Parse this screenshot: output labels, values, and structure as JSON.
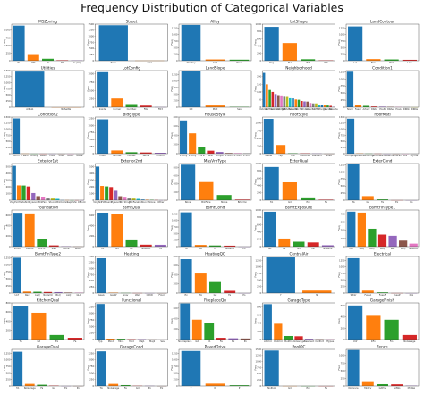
{
  "figure_title": "Frequency Distribution of Categorical Variables",
  "palette": [
    "#1f77b4",
    "#ff7f0e",
    "#2ca02c",
    "#d62728",
    "#9467bd",
    "#8c564b",
    "#e377c2",
    "#7f7f7f",
    "#bcbd22",
    "#17becf"
  ],
  "chart_data": [
    {
      "type": "bar",
      "title": "MSZoning",
      "ylabel": "Freq",
      "categories": [
        "RL",
        "RM",
        "FV",
        "RH",
        "C (all)"
      ],
      "values": [
        1151,
        218,
        65,
        16,
        10
      ],
      "ylim": [
        0,
        1200
      ]
    },
    {
      "type": "bar",
      "title": "Street",
      "ylabel": "Freq",
      "categories": [
        "Pave",
        "Grvl"
      ],
      "values": [
        1454,
        6
      ],
      "ylim": [
        0,
        1500
      ]
    },
    {
      "type": "bar",
      "title": "Alley",
      "ylabel": "Freq",
      "categories": [
        "NoAlley",
        "Grvl",
        "Pave"
      ],
      "values": [
        1369,
        50,
        41
      ],
      "ylim": [
        0,
        1400
      ]
    },
    {
      "type": "bar",
      "title": "LotShape",
      "ylabel": "Freq",
      "categories": [
        "Reg",
        "IR1",
        "IR2",
        "IR3"
      ],
      "values": [
        925,
        484,
        41,
        10
      ],
      "ylim": [
        0,
        1000
      ]
    },
    {
      "type": "bar",
      "title": "LandContour",
      "ylabel": "Freq",
      "categories": [
        "Lvl",
        "Bnk",
        "HLS",
        "Low"
      ],
      "values": [
        1311,
        63,
        50,
        36
      ],
      "ylim": [
        0,
        1400
      ]
    },
    {
      "type": "bar",
      "title": "Utilities",
      "ylabel": "Freq",
      "categories": [
        "AllPub",
        "NoSeWa"
      ],
      "values": [
        1459,
        1
      ],
      "ylim": [
        0,
        1500
      ]
    },
    {
      "type": "bar",
      "title": "LotConfig",
      "ylabel": "Freq",
      "categories": [
        "Inside",
        "Corner",
        "CulDSac",
        "FR2",
        "FR3"
      ],
      "values": [
        1052,
        263,
        94,
        47,
        4
      ],
      "ylim": [
        0,
        1100
      ]
    },
    {
      "type": "bar",
      "title": "LandSlope",
      "ylabel": "Freq",
      "categories": [
        "Gtl",
        "Mod",
        "Sev"
      ],
      "values": [
        1382,
        65,
        13
      ],
      "ylim": [
        0,
        1400
      ]
    },
    {
      "type": "bar",
      "title": "Neighborhood",
      "ylabel": "Freq",
      "categories": [
        "NAmes",
        "CollgCr",
        "OldTown",
        "Edwards",
        "Somerst",
        "Gilbert",
        "NridgHt",
        "Sawyer",
        "NWAmes",
        "SawyerW",
        "BrkSide",
        "Crawfor",
        "Mitchel",
        "NoRidge",
        "Timber",
        "IDOTRR",
        "ClearCr",
        "StoneBr",
        "SWISU",
        "MeadowV",
        "Blmngtn",
        "BrDale",
        "Veenker",
        "NPkVill",
        "Blueste"
      ],
      "values": [
        225,
        150,
        113,
        100,
        86,
        79,
        77,
        74,
        73,
        59,
        58,
        51,
        49,
        41,
        38,
        37,
        28,
        25,
        25,
        17,
        17,
        16,
        11,
        9,
        2
      ],
      "ylim": [
        0,
        240
      ]
    },
    {
      "type": "bar",
      "title": "Condition1",
      "ylabel": "Freq",
      "categories": [
        "Norm",
        "Feedr",
        "Artery",
        "RRAn",
        "PosN",
        "RRAe",
        "PosA",
        "RRNn",
        "RRNe"
      ],
      "values": [
        1260,
        81,
        48,
        26,
        19,
        11,
        8,
        5,
        2
      ],
      "ylim": [
        0,
        1300
      ]
    },
    {
      "type": "bar",
      "title": "Condition2",
      "ylabel": "Freq",
      "categories": [
        "Norm",
        "Feedr",
        "Artery",
        "RRNn",
        "PosN",
        "PosA",
        "RRAn",
        "RRAe"
      ],
      "values": [
        1445,
        6,
        2,
        2,
        2,
        1,
        1,
        1
      ],
      "ylim": [
        0,
        1500
      ]
    },
    {
      "type": "bar",
      "title": "BldgType",
      "ylabel": "Freq",
      "categories": [
        "1Fam",
        "TwnhsE",
        "Duplex",
        "Twnhs",
        "2fmCon"
      ],
      "values": [
        1220,
        114,
        52,
        43,
        31
      ],
      "ylim": [
        0,
        1300
      ]
    },
    {
      "type": "bar",
      "title": "HouseStyle",
      "ylabel": "Freq",
      "categories": [
        "1Story",
        "2Story",
        "1.5Fin",
        "SLvl",
        "SFoyer",
        "1.5Unf",
        "2.5Unf",
        "2.5Fin"
      ],
      "values": [
        726,
        445,
        154,
        65,
        37,
        14,
        11,
        8
      ],
      "ylim": [
        0,
        800
      ]
    },
    {
      "type": "bar",
      "title": "RoofStyle",
      "ylabel": "Freq",
      "categories": [
        "Gable",
        "Hip",
        "Flat",
        "Gambrel",
        "Mansard",
        "Shed"
      ],
      "values": [
        1141,
        286,
        13,
        11,
        7,
        2
      ],
      "ylim": [
        0,
        1200
      ]
    },
    {
      "type": "bar",
      "title": "RoofMatl",
      "ylabel": "Freq",
      "categories": [
        "CompShg",
        "Tar&Grv",
        "WdShngl",
        "WdShake",
        "Metal",
        "Membran",
        "Roll",
        "ClyTile"
      ],
      "values": [
        1434,
        11,
        6,
        5,
        1,
        1,
        1,
        1
      ],
      "ylim": [
        0,
        1500
      ]
    },
    {
      "type": "bar",
      "title": "Exterior1st",
      "ylabel": "Freq",
      "categories": [
        "VinylSd",
        "HdBoard",
        "MetalSd",
        "Wd Sdng",
        "Plywood",
        "CemntBd",
        "BrkFace",
        "WdShing",
        "Stucco",
        "AsbShng",
        "BrkComm",
        "Stone",
        "AsphShn",
        "ImStucc",
        "CBlock"
      ],
      "values": [
        515,
        222,
        220,
        206,
        108,
        61,
        50,
        26,
        25,
        20,
        2,
        2,
        1,
        1,
        1
      ],
      "ylim": [
        0,
        550
      ]
    },
    {
      "type": "bar",
      "title": "Exterior2nd",
      "ylabel": "Freq",
      "categories": [
        "VinylSd",
        "MetalSd",
        "HdBoard",
        "Wd Sdng",
        "Plywood",
        "CmentBd",
        "Wd Shng",
        "Stucco",
        "BrkFace",
        "AsbShng",
        "ImStucc",
        "Brk Cmn",
        "Stone",
        "AsphShn",
        "Other",
        "CBlock"
      ],
      "values": [
        504,
        214,
        207,
        197,
        142,
        60,
        38,
        26,
        25,
        20,
        10,
        7,
        5,
        3,
        1,
        1
      ],
      "ylim": [
        0,
        550
      ]
    },
    {
      "type": "bar",
      "title": "MasVnrType",
      "ylabel": "Freq",
      "categories": [
        "None",
        "BrkFace",
        "Stone",
        "BrkCmn"
      ],
      "values": [
        872,
        445,
        128,
        15
      ],
      "ylim": [
        0,
        900
      ]
    },
    {
      "type": "bar",
      "title": "ExterQual",
      "ylabel": "Freq",
      "categories": [
        "TA",
        "Gd",
        "Ex",
        "Fa"
      ],
      "values": [
        906,
        488,
        52,
        14
      ],
      "ylim": [
        0,
        1000
      ]
    },
    {
      "type": "bar",
      "title": "ExterCond",
      "ylabel": "Freq",
      "categories": [
        "TA",
        "Gd",
        "Fa",
        "Ex",
        "Po"
      ],
      "values": [
        1282,
        146,
        28,
        3,
        1
      ],
      "ylim": [
        0,
        1300
      ]
    },
    {
      "type": "bar",
      "title": "Foundation",
      "ylabel": "Freq",
      "categories": [
        "PConc",
        "CBlock",
        "BrkTil",
        "Slab",
        "Stone",
        "Wood"
      ],
      "values": [
        647,
        634,
        146,
        24,
        6,
        3
      ],
      "ylim": [
        0,
        700
      ]
    },
    {
      "type": "bar",
      "title": "BsmtQual",
      "ylabel": "Freq",
      "categories": [
        "TA",
        "Gd",
        "Ex",
        "NoBsmt",
        "Fa"
      ],
      "values": [
        649,
        618,
        121,
        37,
        35
      ],
      "ylim": [
        0,
        700
      ]
    },
    {
      "type": "bar",
      "title": "BsmtCond",
      "ylabel": "Freq",
      "categories": [
        "TA",
        "Gd",
        "Fa",
        "NoBsmt",
        "Po"
      ],
      "values": [
        1311,
        65,
        45,
        37,
        2
      ],
      "ylim": [
        0,
        1400
      ]
    },
    {
      "type": "bar",
      "title": "BsmtExposure",
      "ylabel": "Freq",
      "categories": [
        "No",
        "Av",
        "Gd",
        "Mn",
        "NoBsmt"
      ],
      "values": [
        953,
        221,
        134,
        114,
        38
      ],
      "ylim": [
        0,
        1000
      ]
    },
    {
      "type": "bar",
      "title": "BsmtFinType1",
      "ylabel": "Freq",
      "categories": [
        "Unf",
        "GLQ",
        "ALQ",
        "BLQ",
        "Rec",
        "LwQ",
        "NoBsmt"
      ],
      "values": [
        430,
        418,
        220,
        148,
        133,
        74,
        37
      ],
      "ylim": [
        0,
        450
      ]
    },
    {
      "type": "bar",
      "title": "BsmtFinType2",
      "ylabel": "Freq",
      "categories": [
        "Unf",
        "Rec",
        "LwQ",
        "NoBsmt",
        "BLQ",
        "ALQ",
        "GLQ"
      ],
      "values": [
        1256,
        54,
        46,
        38,
        33,
        19,
        14
      ],
      "ylim": [
        0,
        1300
      ]
    },
    {
      "type": "bar",
      "title": "Heating",
      "ylabel": "Freq",
      "categories": [
        "GasA",
        "GasW",
        "Grav",
        "Wall",
        "OthW",
        "Floor"
      ],
      "values": [
        1428,
        18,
        7,
        4,
        2,
        1
      ],
      "ylim": [
        0,
        1500
      ]
    },
    {
      "type": "bar",
      "title": "HeatingQC",
      "ylabel": "Freq",
      "categories": [
        "Ex",
        "TA",
        "Gd",
        "Fa",
        "Po"
      ],
      "values": [
        741,
        428,
        241,
        49,
        1
      ],
      "ylim": [
        0,
        800
      ]
    },
    {
      "type": "bar",
      "title": "CentralAir",
      "ylabel": "Freq",
      "categories": [
        "Y",
        "N"
      ],
      "values": [
        1365,
        95
      ],
      "ylim": [
        0,
        1400
      ]
    },
    {
      "type": "bar",
      "title": "Electrical",
      "ylabel": "Freq",
      "categories": [
        "SBrkr",
        "FuseA",
        "FuseF",
        "FuseP",
        "Mix"
      ],
      "values": [
        1335,
        94,
        27,
        3,
        1
      ],
      "ylim": [
        0,
        1400
      ]
    },
    {
      "type": "bar",
      "title": "KitchenQual",
      "ylabel": "Freq",
      "categories": [
        "TA",
        "Gd",
        "Ex",
        "Fa"
      ],
      "values": [
        735,
        586,
        100,
        39
      ],
      "ylim": [
        0,
        800
      ]
    },
    {
      "type": "bar",
      "title": "Functional",
      "ylabel": "Freq",
      "categories": [
        "Typ",
        "Min2",
        "Min1",
        "Mod",
        "Maj1",
        "Maj2",
        "Sev"
      ],
      "values": [
        1360,
        34,
        31,
        15,
        14,
        5,
        1
      ],
      "ylim": [
        0,
        1400
      ]
    },
    {
      "type": "bar",
      "title": "FireplaceQu",
      "ylabel": "Freq",
      "categories": [
        "NoFireplace",
        "Gd",
        "TA",
        "Fa",
        "Ex",
        "Po"
      ],
      "values": [
        690,
        380,
        313,
        33,
        24,
        20
      ],
      "ylim": [
        0,
        700
      ]
    },
    {
      "type": "bar",
      "title": "GarageType",
      "ylabel": "Freq",
      "categories": [
        "Attchd",
        "Detchd",
        "BuiltIn",
        "NoGarage",
        "Basment",
        "CarPort",
        "2Types"
      ],
      "values": [
        870,
        387,
        88,
        81,
        19,
        9,
        6
      ],
      "ylim": [
        0,
        900
      ]
    },
    {
      "type": "bar",
      "title": "GarageFinish",
      "ylabel": "Freq",
      "categories": [
        "Unf",
        "RFn",
        "Fin",
        "NoGarage"
      ],
      "values": [
        605,
        422,
        352,
        81
      ],
      "ylim": [
        0,
        650
      ]
    },
    {
      "type": "bar",
      "title": "GarageQual",
      "ylabel": "Freq",
      "categories": [
        "TA",
        "NoGarage",
        "Fa",
        "Gd",
        "Ex",
        "Po"
      ],
      "values": [
        1311,
        81,
        48,
        14,
        3,
        3
      ],
      "ylim": [
        0,
        1400
      ]
    },
    {
      "type": "bar",
      "title": "GarageCond",
      "ylabel": "Freq",
      "categories": [
        "TA",
        "NoGarage",
        "Fa",
        "Gd",
        "Po",
        "Ex"
      ],
      "values": [
        1326,
        81,
        35,
        9,
        7,
        2
      ],
      "ylim": [
        0,
        1400
      ]
    },
    {
      "type": "bar",
      "title": "PavedDrive",
      "ylabel": "Freq",
      "categories": [
        "Y",
        "N",
        "P"
      ],
      "values": [
        1340,
        90,
        30
      ],
      "ylim": [
        0,
        1400
      ]
    },
    {
      "type": "bar",
      "title": "PoolQC",
      "ylabel": "Freq",
      "categories": [
        "NoPool",
        "Gd",
        "Ex",
        "Fa"
      ],
      "values": [
        1453,
        3,
        2,
        2
      ],
      "ylim": [
        0,
        1500
      ]
    },
    {
      "type": "bar",
      "title": "Fence",
      "ylabel": "Freq",
      "categories": [
        "NoFence",
        "MnPrv",
        "GdPrv",
        "GdWo",
        "MnWw"
      ],
      "values": [
        1179,
        157,
        59,
        54,
        11
      ],
      "ylim": [
        0,
        1200
      ]
    }
  ]
}
